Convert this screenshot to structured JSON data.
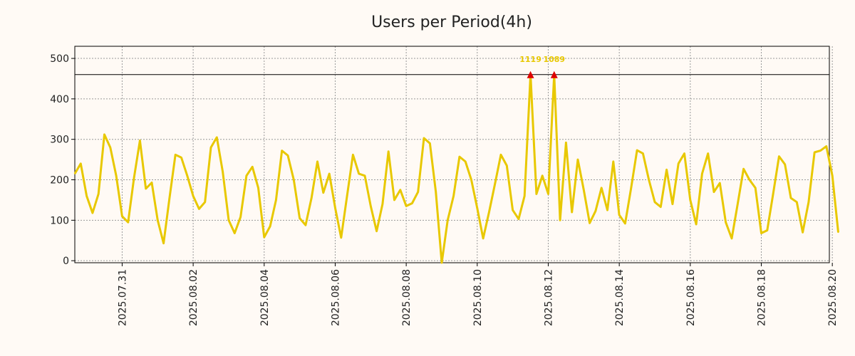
{
  "chart_data": {
    "type": "line",
    "title": "Users per Period(4h)",
    "xlabel": "",
    "ylabel": "",
    "ylim": [
      -5,
      530
    ],
    "xlim": [
      0,
      127.5
    ],
    "y_ticks": [
      0,
      100,
      200,
      300,
      400,
      500
    ],
    "x_ticks": [
      {
        "pos": 8,
        "label": "2025.07.31"
      },
      {
        "pos": 20,
        "label": "2025.08.02"
      },
      {
        "pos": 32,
        "label": "2025.08.04"
      },
      {
        "pos": 44,
        "label": "2025.08.06"
      },
      {
        "pos": 56,
        "label": "2025.08.08"
      },
      {
        "pos": 68,
        "label": "2025.08.10"
      },
      {
        "pos": 80,
        "label": "2025.08.12"
      },
      {
        "pos": 92,
        "label": "2025.08.14"
      },
      {
        "pos": 104,
        "label": "2025.08.16"
      },
      {
        "pos": 116,
        "label": "2025.08.18"
      },
      {
        "pos": 128,
        "label": "2025.08.20"
      }
    ],
    "grid": true,
    "cap_line": 460,
    "line_color": "#e8c800",
    "cap_line_color": "#000000",
    "peak_color": "#dd0000",
    "series": [
      {
        "name": "Users",
        "values": [
          215,
          240,
          160,
          118,
          165,
          312,
          280,
          210,
          110,
          95,
          205,
          297,
          178,
          193,
          100,
          43,
          155,
          262,
          255,
          210,
          160,
          128,
          145,
          280,
          305,
          220,
          100,
          68,
          108,
          210,
          232,
          180,
          58,
          85,
          150,
          272,
          260,
          200,
          105,
          88,
          155,
          245,
          168,
          215,
          130,
          57,
          160,
          262,
          215,
          210,
          135,
          73,
          140,
          270,
          150,
          175,
          135,
          142,
          170,
          303,
          290,
          170,
          -5,
          100,
          160,
          257,
          245,
          200,
          130,
          55,
          120,
          190,
          262,
          235,
          125,
          103,
          160,
          460,
          165,
          210,
          165,
          460,
          100,
          292,
          120,
          250,
          175,
          93,
          123,
          180,
          125,
          245,
          113,
          92,
          180,
          273,
          265,
          200,
          145,
          133,
          225,
          140,
          240,
          265,
          150,
          90,
          215,
          265,
          170,
          192,
          95,
          55,
          140,
          227,
          200,
          180,
          68,
          75,
          165,
          258,
          238,
          155,
          145,
          70,
          145,
          268,
          272,
          283,
          210,
          70
        ],
        "peaks": [
          {
            "x": 77,
            "y": 460,
            "label": "1119"
          },
          {
            "x": 81,
            "y": 460,
            "label": "1089"
          }
        ]
      }
    ]
  }
}
